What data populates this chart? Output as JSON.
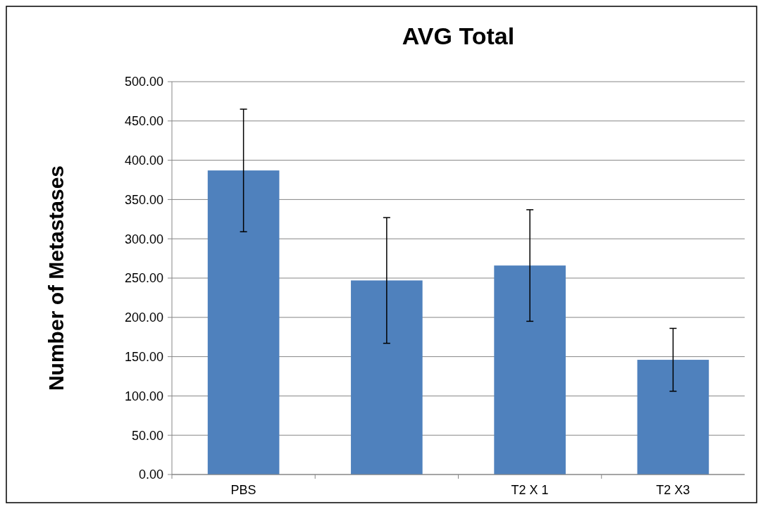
{
  "chart_data": {
    "type": "bar",
    "title": "AVG Total",
    "ylabel": "Number of Metastases",
    "categories": [
      "PBS",
      null,
      "T2 X 1",
      "T2 X3"
    ],
    "values": [
      387,
      247,
      266,
      146
    ],
    "errors": [
      78,
      80,
      71,
      40
    ],
    "color": "#4f81bd",
    "ylim": [
      0,
      500
    ],
    "yticks": [
      {
        "value": 0,
        "label": "0.00"
      },
      {
        "value": 50,
        "label": "50.00"
      },
      {
        "value": 100,
        "label": "100.00"
      },
      {
        "value": 150,
        "label": "150.00"
      },
      {
        "value": 200,
        "label": "200.00"
      },
      {
        "value": 250,
        "label": "250.00"
      },
      {
        "value": 300,
        "label": "300.00"
      },
      {
        "value": 350,
        "label": "350.00"
      },
      {
        "value": 400,
        "label": "400.00"
      },
      {
        "value": 450,
        "label": "450.00"
      },
      {
        "value": 500,
        "label": "500.00"
      }
    ],
    "grid": "y"
  }
}
